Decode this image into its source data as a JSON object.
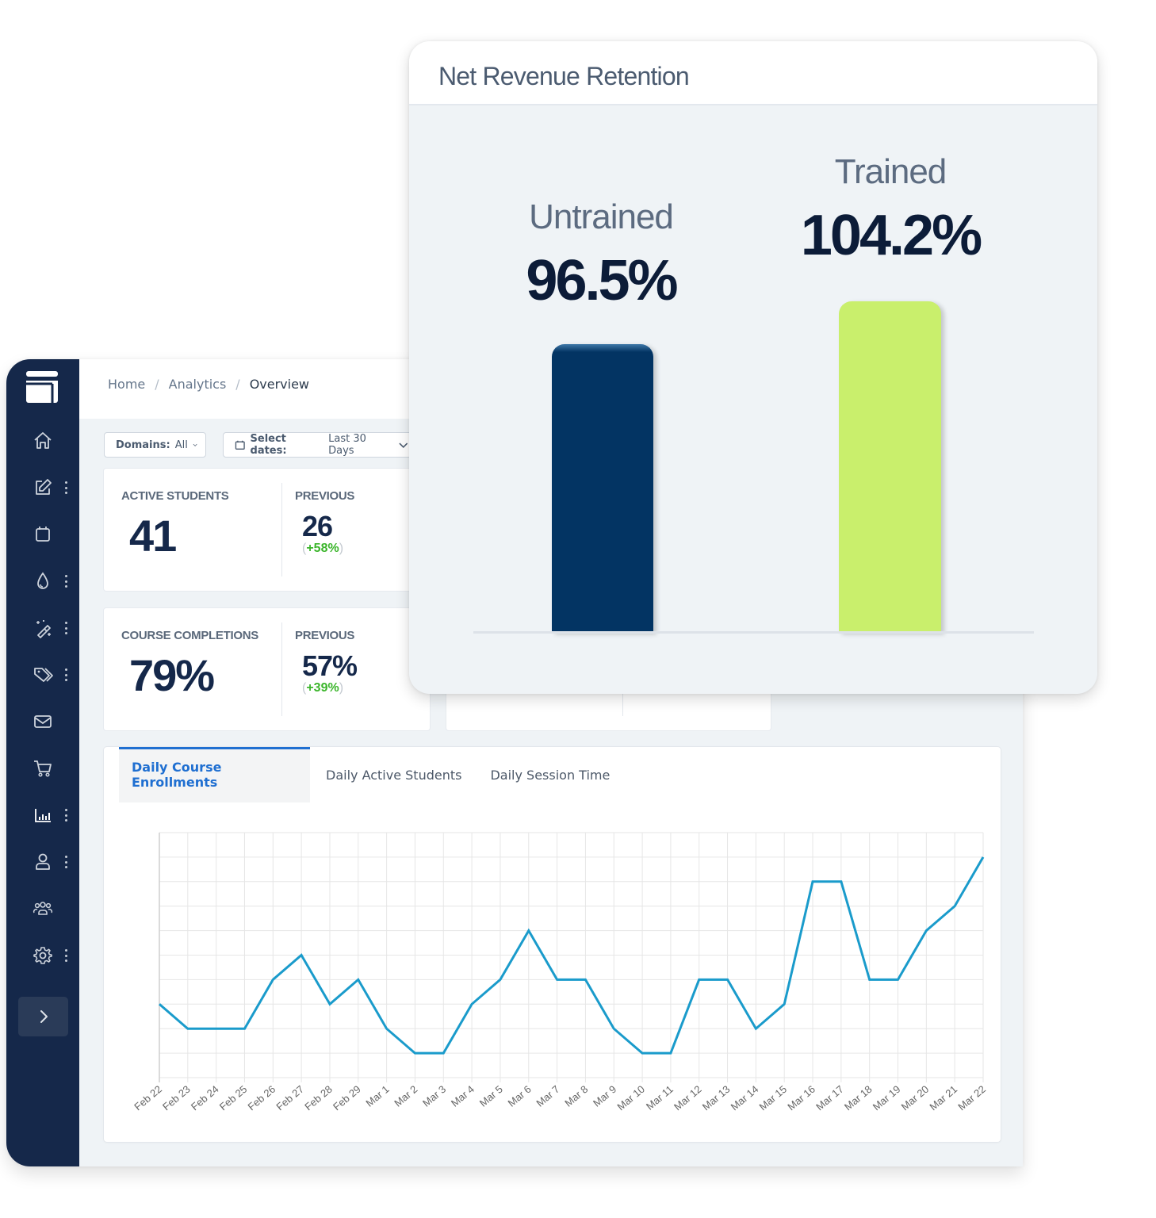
{
  "breadcrumb": {
    "items": [
      "Home",
      "Analytics",
      "Overview"
    ],
    "separator": "/"
  },
  "filters": {
    "domains": {
      "label": "Domains:",
      "value": "All"
    },
    "dates": {
      "label": "Select dates:",
      "value": "Last 30 Days"
    }
  },
  "stats": [
    {
      "label": "ACTIVE STUDENTS",
      "value": "41",
      "previous_label": "PREVIOUS",
      "previous_value": "26",
      "delta": "+58%",
      "open_paren": "(",
      "close_paren": ")"
    },
    {
      "label": "COURSE COMPLETIONS",
      "value": "79%",
      "previous_label": "PREVIOUS",
      "previous_value": "57%",
      "delta": "+39%",
      "open_paren": "(",
      "close_paren": ")"
    }
  ],
  "tabs": [
    {
      "label": "Daily Course Enrollments",
      "active": true
    },
    {
      "label": "Daily Active Students",
      "active": false
    },
    {
      "label": "Daily Session Time",
      "active": false
    }
  ],
  "sidebar": {
    "items": [
      {
        "icon": "home-icon",
        "dots": false
      },
      {
        "icon": "edit-icon",
        "dots": true
      },
      {
        "icon": "calendar-icon",
        "dots": false
      },
      {
        "icon": "droplet-icon",
        "dots": true
      },
      {
        "icon": "magic-wand-icon",
        "dots": true
      },
      {
        "icon": "tags-icon",
        "dots": true
      },
      {
        "icon": "mail-icon",
        "dots": false
      },
      {
        "icon": "cart-icon",
        "dots": false
      },
      {
        "icon": "bar-chart-icon",
        "dots": true
      },
      {
        "icon": "user-icon",
        "dots": true
      },
      {
        "icon": "users-icon",
        "dots": false
      },
      {
        "icon": "gear-icon",
        "dots": true
      }
    ],
    "expand_icon": "chevron-right-icon"
  },
  "colors": {
    "sidebar_bg": "#15284a",
    "accent_blue": "#1f6fd1",
    "line": "#1a9bcb",
    "positive": "#3bb52b",
    "untrained_bar": "#033463",
    "trained_bar": "#c9ef6c"
  },
  "nrr": {
    "title": "Net Revenue Retention",
    "untrained": {
      "label": "Untrained",
      "value": "96.5%"
    },
    "trained": {
      "label": "Trained",
      "value": "104.2%"
    }
  },
  "chart_data": [
    {
      "type": "bar",
      "title": "Net Revenue Retention",
      "categories": [
        "Untrained",
        "Trained"
      ],
      "values": [
        96.5,
        104.2
      ],
      "units": "%",
      "colors": [
        "#033463",
        "#c9ef6c"
      ],
      "xlabel": "",
      "ylabel": "",
      "grid": false,
      "legend": "none"
    },
    {
      "type": "line",
      "title": "Daily Course Enrollments",
      "x": [
        "Feb 22",
        "Feb 23",
        "Feb 24",
        "Feb 25",
        "Feb 26",
        "Feb 27",
        "Feb 28",
        "Feb 29",
        "Mar 1",
        "Mar 2",
        "Mar 3",
        "Mar 4",
        "Mar 5",
        "Mar 6",
        "Mar 7",
        "Mar 8",
        "Mar 9",
        "Mar 10",
        "Mar 11",
        "Mar 12",
        "Mar 13",
        "Mar 14",
        "Mar 15",
        "Mar 16",
        "Mar 17",
        "Mar 18",
        "Mar 19",
        "Mar 20",
        "Mar 21",
        "Mar 22"
      ],
      "series": [
        {
          "name": "Daily Course Enrollments",
          "values": [
            3,
            2,
            2,
            2,
            4,
            5,
            3,
            4,
            2,
            1,
            1,
            3,
            4,
            6,
            4,
            4,
            2,
            1,
            1,
            4,
            4,
            2,
            3,
            8,
            8,
            4,
            4,
            6,
            7,
            9
          ]
        }
      ],
      "ylim": [
        0,
        10
      ],
      "grid": true,
      "y_tick_labels_visible": false,
      "legend": "none"
    }
  ]
}
